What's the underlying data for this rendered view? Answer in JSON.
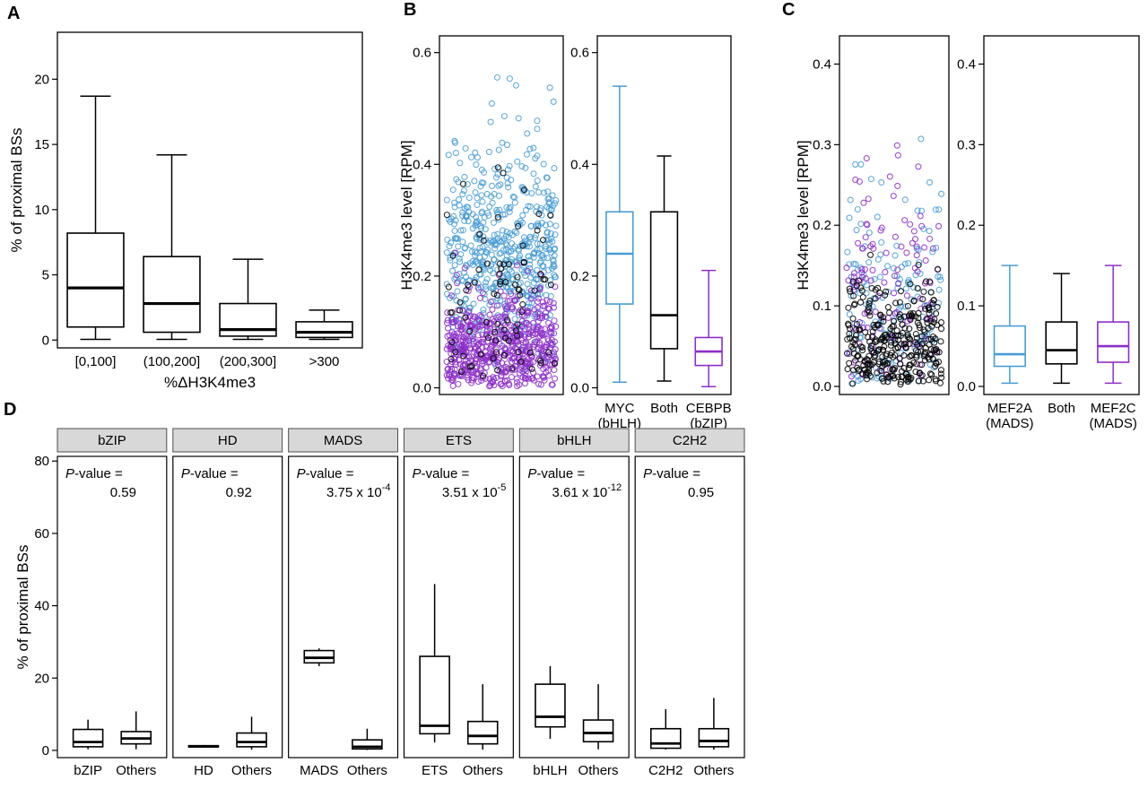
{
  "panels": {
    "a": "A",
    "b": "B",
    "c": "C",
    "d": "D"
  },
  "colors": {
    "black": "#000000",
    "blue": "#4A9CD3",
    "purple": "#8C2FC7",
    "strip_fill": "#D8D8D8",
    "strip_border": "#4D4D4D",
    "frame": "#000000"
  },
  "chart_data": [
    {
      "id": "A",
      "type": "boxplot",
      "title": "",
      "ylabel": "% of proximal BSs",
      "xlabel": "%ΔH3K4me3",
      "ylim": [
        -0.6,
        23.6
      ],
      "yticks": [
        0,
        5,
        10,
        15,
        20
      ],
      "ytick_labels": [
        "0",
        "5",
        "10",
        "15",
        "20"
      ],
      "categories": [
        [
          "[0,100]"
        ],
        [
          "(100,200]"
        ],
        [
          "(200,300]"
        ],
        [
          ">300"
        ]
      ],
      "boxes": [
        {
          "color": "black",
          "low": 0.05,
          "q1": 1.0,
          "median": 4.0,
          "q3": 8.2,
          "high": 18.7
        },
        {
          "color": "black",
          "low": 0.05,
          "q1": 0.6,
          "median": 2.8,
          "q3": 6.4,
          "high": 14.2
        },
        {
          "color": "black",
          "low": 0.05,
          "q1": 0.3,
          "median": 0.8,
          "q3": 2.8,
          "high": 6.2
        },
        {
          "color": "black",
          "low": 0.05,
          "q1": 0.2,
          "median": 0.6,
          "q3": 1.4,
          "high": 2.3
        }
      ]
    },
    {
      "id": "B_jitter",
      "type": "scatter",
      "title": "",
      "ylabel": "H3K4me3 level [RPM]",
      "ylim": [
        -0.012,
        0.63
      ],
      "yticks": [
        0,
        0.2,
        0.4,
        0.6
      ],
      "ytick_labels": [
        "0.0",
        "0.2",
        "0.4",
        "0.6"
      ],
      "marker": "open-circle",
      "seed": 7,
      "groups": [
        {
          "name": "MYC (bHLH)",
          "color": "blue",
          "n": 550,
          "center": 0.25,
          "sd": 0.095,
          "min": 0.015,
          "max": 0.615
        },
        {
          "name": "CEBPB (bZIP)",
          "color": "purple",
          "n": 600,
          "center": 0.065,
          "sd": 0.05,
          "min": 0.002,
          "max": 0.33
        },
        {
          "name": "Both",
          "color": "black",
          "n": 85,
          "center": 0.14,
          "sd": 0.1,
          "min": 0.02,
          "max": 0.42
        }
      ]
    },
    {
      "id": "B_box",
      "type": "boxplot",
      "title": "",
      "ylim": [
        -0.012,
        0.63
      ],
      "yticks": [
        0,
        0.2,
        0.4,
        0.6
      ],
      "ytick_labels": [
        "0.0",
        "0.2",
        "0.4",
        "0.6"
      ],
      "categories": [
        [
          "MYC",
          "(bHLH)"
        ],
        [
          "Both"
        ],
        [
          "CEBPB",
          "(bZIP)"
        ]
      ],
      "boxes": [
        {
          "color": "blue",
          "low": 0.01,
          "q1": 0.15,
          "median": 0.24,
          "q3": 0.315,
          "high": 0.54
        },
        {
          "color": "black",
          "low": 0.012,
          "q1": 0.07,
          "median": 0.13,
          "q3": 0.315,
          "high": 0.415
        },
        {
          "color": "purple",
          "low": 0.002,
          "q1": 0.04,
          "median": 0.065,
          "q3": 0.09,
          "high": 0.21
        }
      ]
    },
    {
      "id": "C_jitter",
      "type": "scatter",
      "title": "",
      "ylabel": "H3K4me3 level [RPM]",
      "ylim": [
        -0.01,
        0.435
      ],
      "yticks": [
        0,
        0.1,
        0.2,
        0.3,
        0.4
      ],
      "ytick_labels": [
        "0.0",
        "0.1",
        "0.2",
        "0.3",
        "0.4"
      ],
      "marker": "open-circle",
      "seed": 13,
      "groups": [
        {
          "name": "MEF2A (MADS)",
          "color": "blue",
          "n": 160,
          "center": 0.07,
          "sd": 0.08,
          "min": 0.002,
          "max": 0.43
        },
        {
          "name": "MEF2C (MADS)",
          "color": "purple",
          "n": 120,
          "center": 0.11,
          "sd": 0.09,
          "min": 0.005,
          "max": 0.4
        },
        {
          "name": "Both",
          "color": "black",
          "n": 320,
          "center": 0.045,
          "sd": 0.04,
          "min": 0.002,
          "max": 0.3
        }
      ]
    },
    {
      "id": "C_box",
      "type": "boxplot",
      "title": "",
      "ylim": [
        -0.01,
        0.435
      ],
      "yticks": [
        0,
        0.1,
        0.2,
        0.3,
        0.4
      ],
      "ytick_labels": [
        "0.0",
        "0.1",
        "0.2",
        "0.3",
        "0.4"
      ],
      "categories": [
        [
          "MEF2A",
          "(MADS)"
        ],
        [
          "Both"
        ],
        [
          "MEF2C",
          "(MADS)"
        ]
      ],
      "boxes": [
        {
          "color": "blue",
          "low": 0.004,
          "q1": 0.025,
          "median": 0.04,
          "q3": 0.075,
          "high": 0.15
        },
        {
          "color": "black",
          "low": 0.004,
          "q1": 0.028,
          "median": 0.045,
          "q3": 0.08,
          "high": 0.14
        },
        {
          "color": "purple",
          "low": 0.004,
          "q1": 0.03,
          "median": 0.05,
          "q3": 0.08,
          "high": 0.15
        }
      ]
    },
    {
      "id": "D",
      "type": "boxplot-facets",
      "title": "",
      "ylabel": "% of proximal BSs",
      "ylim": [
        -2,
        81.3
      ],
      "yticks": [
        0,
        20,
        40,
        60,
        80
      ],
      "ytick_labels": [
        "0",
        "20",
        "40",
        "60",
        "80"
      ],
      "p_label_italic": "P",
      "p_label_rest": "-value =",
      "facets": [
        {
          "strip": "bZIP",
          "p_base": "0.59",
          "p_exp": "",
          "categories": [
            "bZIP",
            "Others"
          ],
          "boxes": [
            {
              "color": "black",
              "low": 0.3,
              "q1": 1.0,
              "median": 2.3,
              "q3": 5.8,
              "high": 8.5
            },
            {
              "color": "black",
              "low": 0.3,
              "q1": 1.8,
              "median": 3.3,
              "q3": 5.2,
              "high": 10.8
            }
          ]
        },
        {
          "strip": "HD",
          "p_base": "0.92",
          "p_exp": "",
          "categories": [
            "HD",
            "Others"
          ],
          "boxes": [
            {
              "color": "black",
              "low": 0.8,
              "q1": 0.95,
              "median": 1.1,
              "q3": 1.3,
              "high": 1.5
            },
            {
              "color": "black",
              "low": 0.2,
              "q1": 1.0,
              "median": 2.3,
              "q3": 4.8,
              "high": 9.3
            }
          ]
        },
        {
          "strip": "MADS",
          "p_base": "3.75 x 10",
          "p_exp": "-4",
          "categories": [
            "MADS",
            "Others"
          ],
          "boxes": [
            {
              "color": "black",
              "low": 23.3,
              "q1": 24.2,
              "median": 25.6,
              "q3": 27.6,
              "high": 28.2
            },
            {
              "color": "black",
              "low": 0.1,
              "q1": 0.4,
              "median": 1.0,
              "q3": 2.9,
              "high": 6.0
            }
          ]
        },
        {
          "strip": "ETS",
          "p_base": "3.51 x 10",
          "p_exp": "-5",
          "categories": [
            "ETS",
            "Others"
          ],
          "boxes": [
            {
              "color": "black",
              "low": 2.2,
              "q1": 4.6,
              "median": 6.8,
              "q3": 26.0,
              "high": 46.0
            },
            {
              "color": "black",
              "low": 0.2,
              "q1": 1.8,
              "median": 4.0,
              "q3": 8.0,
              "high": 18.3
            }
          ]
        },
        {
          "strip": "bHLH",
          "p_base": "3.61 x 10",
          "p_exp": "-12",
          "categories": [
            "bHLH",
            "Others"
          ],
          "boxes": [
            {
              "color": "black",
              "low": 3.2,
              "q1": 6.5,
              "median": 9.3,
              "q3": 18.3,
              "high": 23.3
            },
            {
              "color": "black",
              "low": 0.3,
              "q1": 2.4,
              "median": 4.8,
              "q3": 8.4,
              "high": 18.3
            }
          ]
        },
        {
          "strip": "C2H2",
          "p_base": "0.95",
          "p_exp": "",
          "categories": [
            "C2H2",
            "Others"
          ],
          "boxes": [
            {
              "color": "black",
              "low": 0.2,
              "q1": 0.6,
              "median": 1.9,
              "q3": 6.0,
              "high": 11.4
            },
            {
              "color": "black",
              "low": 0.2,
              "q1": 1.0,
              "median": 2.6,
              "q3": 6.0,
              "high": 14.5
            }
          ]
        }
      ]
    }
  ]
}
